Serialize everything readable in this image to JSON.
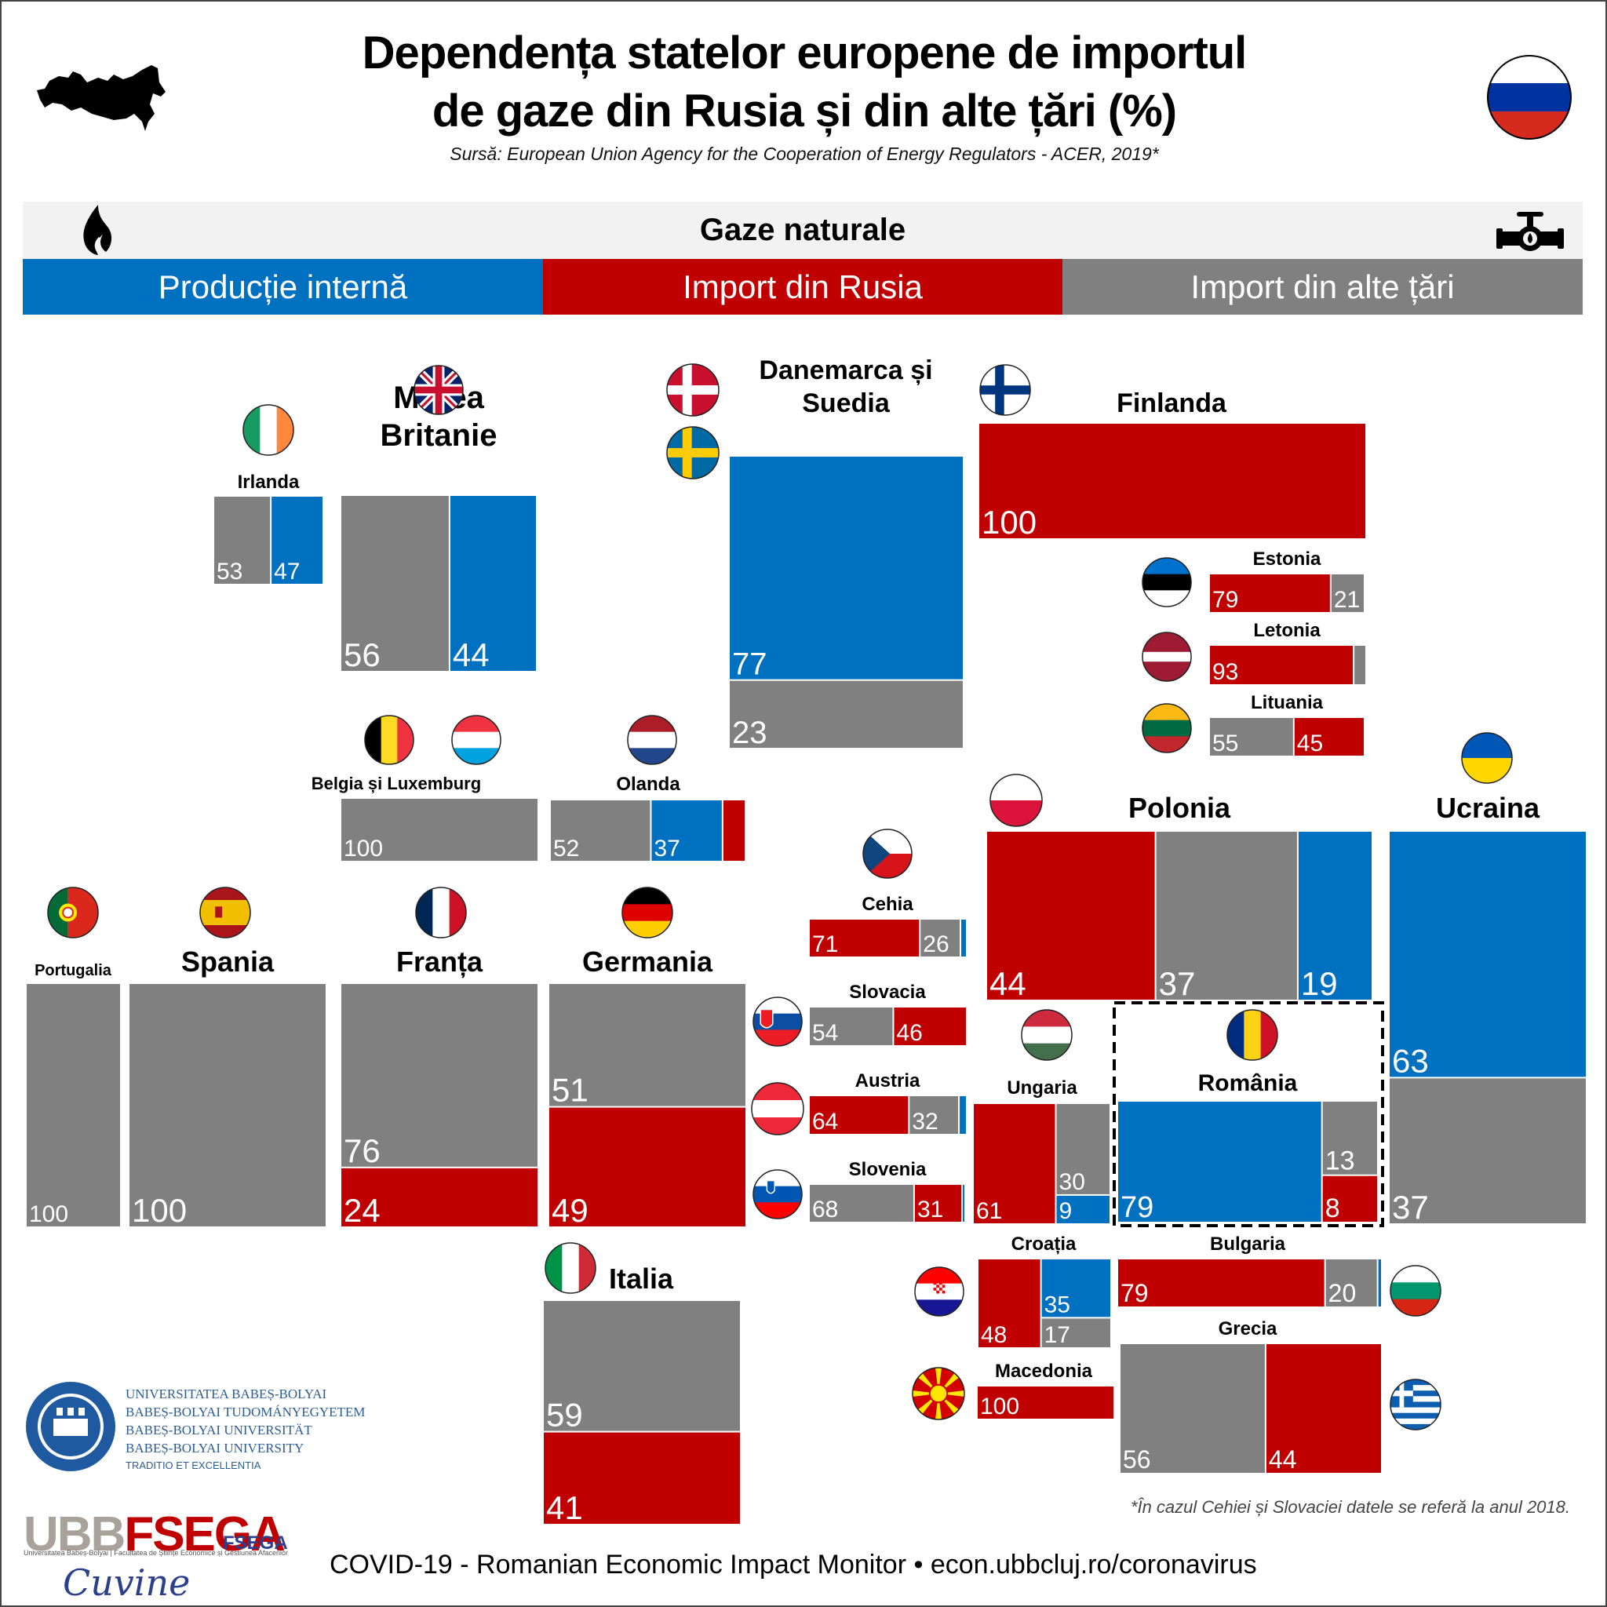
{
  "header": {
    "title_line1": "Dependența statelor europene de importul",
    "title_line2": "de gaze din Rusia și din alte țări (%)",
    "subtitle": "Sursă: European Union Agency for the Cooperation of Energy Regulators - ACER, 2019*",
    "band_label": "Gaze naturale"
  },
  "legend": [
    {
      "key": "intern",
      "label": "Producție internă",
      "color": "#0070c0"
    },
    {
      "key": "rusia",
      "label": "Import din Rusia",
      "color": "#c00000"
    },
    {
      "key": "alte",
      "label": "Import din alte țări",
      "color": "#808080"
    }
  ],
  "colors": {
    "intern": "#0070c0",
    "rusia": "#c00000",
    "alte": "#808080"
  },
  "chart_data": {
    "type": "table",
    "title": "Dependența statelor europene de importul de gaze din Rusia și din alte țări (%)",
    "unit": "%",
    "series_names": {
      "intern": "Producție internă",
      "rusia": "Import din Rusia",
      "alte": "Import din alte țări"
    },
    "countries": [
      {
        "id": "irlanda",
        "name": "Irlanda",
        "segments": [
          {
            "s": "alte",
            "v": 53,
            "label": "53"
          },
          {
            "s": "intern",
            "v": 47,
            "label": "47"
          }
        ]
      },
      {
        "id": "marea-britanie",
        "name": "Marea Britanie",
        "segments": [
          {
            "s": "alte",
            "v": 56,
            "label": "56"
          },
          {
            "s": "intern",
            "v": 44,
            "label": "44"
          }
        ]
      },
      {
        "id": "danemarca-suedia",
        "name": "Danemarca și Suedia",
        "segments": [
          {
            "s": "intern",
            "v": 77,
            "label": "77"
          },
          {
            "s": "alte",
            "v": 23,
            "label": "23"
          }
        ]
      },
      {
        "id": "finlanda",
        "name": "Finlanda",
        "segments": [
          {
            "s": "rusia",
            "v": 100,
            "label": "100"
          }
        ]
      },
      {
        "id": "estonia",
        "name": "Estonia",
        "segments": [
          {
            "s": "rusia",
            "v": 79,
            "label": "79"
          },
          {
            "s": "alte",
            "v": 21,
            "label": "21"
          }
        ]
      },
      {
        "id": "letonia",
        "name": "Letonia",
        "segments": [
          {
            "s": "rusia",
            "v": 93,
            "label": "93"
          },
          {
            "s": "alte",
            "v": 7,
            "label": ""
          }
        ]
      },
      {
        "id": "lituania",
        "name": "Lituania",
        "segments": [
          {
            "s": "alte",
            "v": 55,
            "label": "55"
          },
          {
            "s": "rusia",
            "v": 45,
            "label": "45"
          }
        ]
      },
      {
        "id": "belgia-luxemburg",
        "name": "Belgia și Luxemburg",
        "segments": [
          {
            "s": "alte",
            "v": 100,
            "label": "100"
          }
        ]
      },
      {
        "id": "olanda",
        "name": "Olanda",
        "segments": [
          {
            "s": "alte",
            "v": 52,
            "label": "52"
          },
          {
            "s": "intern",
            "v": 37,
            "label": "37"
          },
          {
            "s": "rusia",
            "v": 11,
            "label": ""
          }
        ]
      },
      {
        "id": "portugalia",
        "name": "Portugalia",
        "segments": [
          {
            "s": "alte",
            "v": 100,
            "label": "100"
          }
        ]
      },
      {
        "id": "spania",
        "name": "Spania",
        "segments": [
          {
            "s": "alte",
            "v": 100,
            "label": "100"
          }
        ]
      },
      {
        "id": "franta",
        "name": "Franța",
        "segments": [
          {
            "s": "alte",
            "v": 76,
            "label": "76"
          },
          {
            "s": "rusia",
            "v": 24,
            "label": "24"
          }
        ]
      },
      {
        "id": "germania",
        "name": "Germania",
        "segments": [
          {
            "s": "alte",
            "v": 51,
            "label": "51"
          },
          {
            "s": "rusia",
            "v": 49,
            "label": "49"
          }
        ]
      },
      {
        "id": "italia",
        "name": "Italia",
        "segments": [
          {
            "s": "alte",
            "v": 59,
            "label": "59"
          },
          {
            "s": "rusia",
            "v": 41,
            "label": "41"
          }
        ]
      },
      {
        "id": "cehia",
        "name": "Cehia",
        "segments": [
          {
            "s": "rusia",
            "v": 71,
            "label": "71"
          },
          {
            "s": "alte",
            "v": 26,
            "label": "26"
          },
          {
            "s": "intern",
            "v": 3,
            "label": ""
          }
        ]
      },
      {
        "id": "slovacia",
        "name": "Slovacia",
        "segments": [
          {
            "s": "alte",
            "v": 54,
            "label": "54"
          },
          {
            "s": "rusia",
            "v": 46,
            "label": "46"
          }
        ]
      },
      {
        "id": "austria",
        "name": "Austria",
        "segments": [
          {
            "s": "rusia",
            "v": 64,
            "label": "64"
          },
          {
            "s": "alte",
            "v": 32,
            "label": "32"
          },
          {
            "s": "intern",
            "v": 4,
            "label": ""
          }
        ]
      },
      {
        "id": "slovenia",
        "name": "Slovenia",
        "segments": [
          {
            "s": "alte",
            "v": 68,
            "label": "68"
          },
          {
            "s": "rusia",
            "v": 31,
            "label": "31"
          },
          {
            "s": "intern",
            "v": 1,
            "label": ""
          }
        ]
      },
      {
        "id": "polonia",
        "name": "Polonia",
        "segments": [
          {
            "s": "rusia",
            "v": 44,
            "label": "44"
          },
          {
            "s": "alte",
            "v": 37,
            "label": "37"
          },
          {
            "s": "intern",
            "v": 19,
            "label": "19"
          }
        ]
      },
      {
        "id": "ucraina",
        "name": "Ucraina",
        "segments": [
          {
            "s": "intern",
            "v": 63,
            "label": "63"
          },
          {
            "s": "alte",
            "v": 37,
            "label": "37"
          }
        ]
      },
      {
        "id": "ungaria",
        "name": "Ungaria",
        "segments": [
          {
            "s": "rusia",
            "v": 61,
            "label": "61"
          },
          {
            "s": "alte",
            "v": 30,
            "label": "30"
          },
          {
            "s": "intern",
            "v": 9,
            "label": "9"
          }
        ]
      },
      {
        "id": "romania",
        "name": "România",
        "segments": [
          {
            "s": "intern",
            "v": 79,
            "label": "79"
          },
          {
            "s": "alte",
            "v": 13,
            "label": "13"
          },
          {
            "s": "rusia",
            "v": 8,
            "label": "8"
          }
        ]
      },
      {
        "id": "croatia",
        "name": "Croația",
        "segments": [
          {
            "s": "rusia",
            "v": 48,
            "label": "48"
          },
          {
            "s": "intern",
            "v": 35,
            "label": "35"
          },
          {
            "s": "alte",
            "v": 17,
            "label": "17"
          }
        ]
      },
      {
        "id": "bulgaria",
        "name": "Bulgaria",
        "segments": [
          {
            "s": "rusia",
            "v": 79,
            "label": "79"
          },
          {
            "s": "alte",
            "v": 20,
            "label": "20"
          },
          {
            "s": "intern",
            "v": 1,
            "label": ""
          }
        ]
      },
      {
        "id": "macedonia",
        "name": "Macedonia",
        "segments": [
          {
            "s": "rusia",
            "v": 100,
            "label": "100"
          }
        ]
      },
      {
        "id": "grecia",
        "name": "Grecia",
        "segments": [
          {
            "s": "alte",
            "v": 56,
            "label": "56"
          },
          {
            "s": "rusia",
            "v": 44,
            "label": "44"
          }
        ]
      }
    ]
  },
  "footnote": "*În cazul Cehiei și Slovaciei datele se referă la anul 2018.",
  "footer": "COVID-19 - Romanian Economic Impact Monitor • econ.ubbcluj.ro/coronavirus",
  "logos": {
    "ubb_lines": [
      "UNIVERSITATEA BABEȘ-BOLYAI",
      "BABEȘ-BOLYAI TUDOMÁNYEGYETEM",
      "BABEȘ-BOLYAI UNIVERSITÄT",
      "BABEȘ-BOLYAI UNIVERSITY"
    ],
    "ubb_motto": "TRADITIO ET EXCELLENTIA",
    "ubbfsega_part1": "UBB",
    "ubbfsega_part2": "FSEGA",
    "ubbfsega_sub": "Universitatea Babeș-Bolyai | Facultatea de Științe Economice și Gestiunea Afacerilor",
    "fsega_label": "FSEGA",
    "signature": "Cuvine"
  }
}
